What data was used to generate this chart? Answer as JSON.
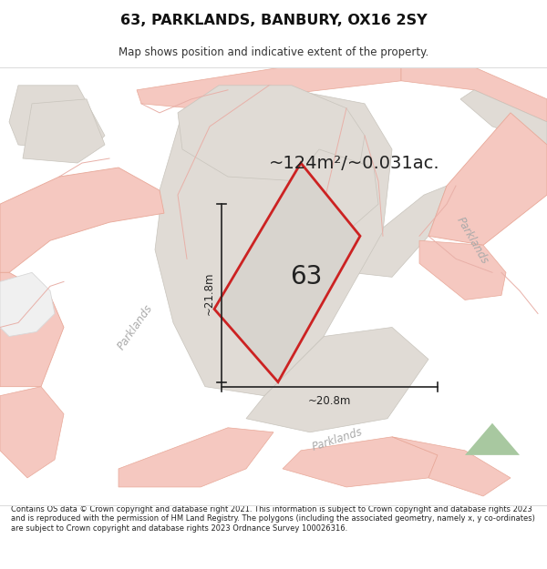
{
  "title": "63, PARKLANDS, BANBURY, OX16 2SY",
  "subtitle": "Map shows position and indicative extent of the property.",
  "area_label": "~124m²/~0.031ac.",
  "plot_label": "63",
  "dim_width": "~20.8m",
  "dim_height": "~21.8m",
  "footer_text": "Contains OS data © Crown copyright and database right 2021. This information is subject to Crown copyright and database rights 2023 and is reproduced with the permission of HM Land Registry. The polygons (including the associated geometry, namely x, y co-ordinates) are subject to Crown copyright and database rights 2023 Ordnance Survey 100026316.",
  "map_bg": "#f5f3f0",
  "road_fill": "#f5c8c0",
  "road_edge": "#e8a898",
  "block_fill": "#e0dbd5",
  "block_edge": "#c8c4bc",
  "plot_fill": "#d8d4ce",
  "plot_edge": "#cc2222",
  "green_fill": "#a8c8a0",
  "parklands_color": "#aaaaaa",
  "dim_color": "#222222",
  "text_color": "#222222"
}
